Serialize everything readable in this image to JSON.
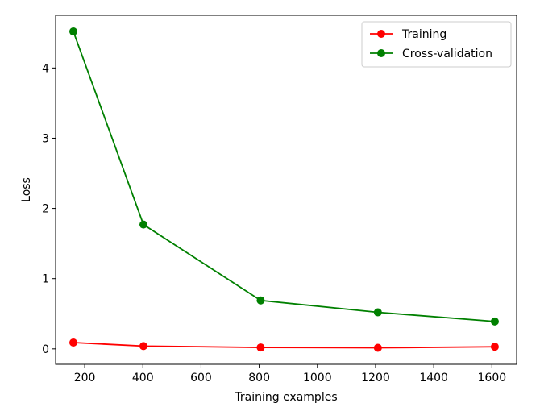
{
  "chart_data": {
    "type": "line",
    "title": "",
    "xlabel": "Training examples",
    "ylabel": "Loss",
    "xlim": [
      100,
      1685
    ],
    "ylim": [
      -0.22,
      4.75
    ],
    "x_ticks": [
      200,
      400,
      600,
      800,
      1000,
      1200,
      1400,
      1600
    ],
    "y_ticks": [
      0,
      1,
      2,
      3,
      4
    ],
    "grid": false,
    "legend_position": "top-right",
    "x": [
      161,
      402,
      805,
      1208,
      1610
    ],
    "series": [
      {
        "name": "Training",
        "color": "#ff0000",
        "values": [
          0.09,
          0.04,
          0.02,
          0.015,
          0.03
        ]
      },
      {
        "name": "Cross-validation",
        "color": "#008000",
        "values": [
          4.52,
          1.77,
          0.69,
          0.52,
          0.39
        ]
      }
    ]
  }
}
